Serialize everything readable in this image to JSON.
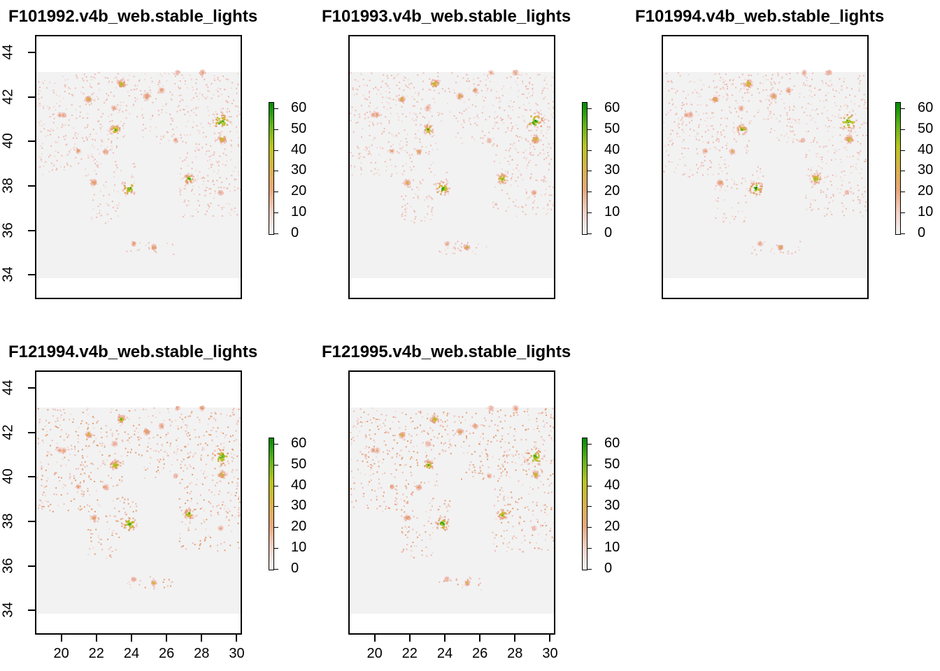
{
  "panels": [
    {
      "title": "F101992.v4b_web.stable_lights",
      "show_x_axis": false,
      "show_y_axis": true
    },
    {
      "title": "F101993.v4b_web.stable_lights",
      "show_x_axis": false,
      "show_y_axis": false
    },
    {
      "title": "F101994.v4b_web.stable_lights",
      "show_x_axis": false,
      "show_y_axis": false
    },
    {
      "title": "F121994.v4b_web.stable_lights",
      "show_x_axis": true,
      "show_y_axis": true
    },
    {
      "title": "F121995.v4b_web.stable_lights",
      "show_x_axis": true,
      "show_y_axis": false
    }
  ],
  "axes": {
    "x_ticks": [
      "20",
      "22",
      "24",
      "26",
      "28",
      "30"
    ],
    "y_ticks": [
      "34",
      "36",
      "38",
      "40",
      "42",
      "44"
    ],
    "xlim": [
      18.5,
      30.3
    ],
    "ylim": [
      32.9,
      44.8
    ],
    "raster_extent": {
      "lon": [
        18.5,
        30.3
      ],
      "lat": [
        33.9,
        43.2
      ]
    }
  },
  "legend": {
    "ticks": [
      "0",
      "10",
      "20",
      "30",
      "40",
      "50",
      "60"
    ],
    "range": [
      0,
      63
    ],
    "colors": [
      "#f2f2f2",
      "#f3d2c6",
      "#e8a87c",
      "#d9b24a",
      "#b9c51f",
      "#5fb21a",
      "#008b00"
    ]
  },
  "colors": {
    "background": "#f2f2f2",
    "low": "#f0c8c0",
    "mid": "#e6a060",
    "high": "#2ea82e",
    "max": "#006400"
  }
}
